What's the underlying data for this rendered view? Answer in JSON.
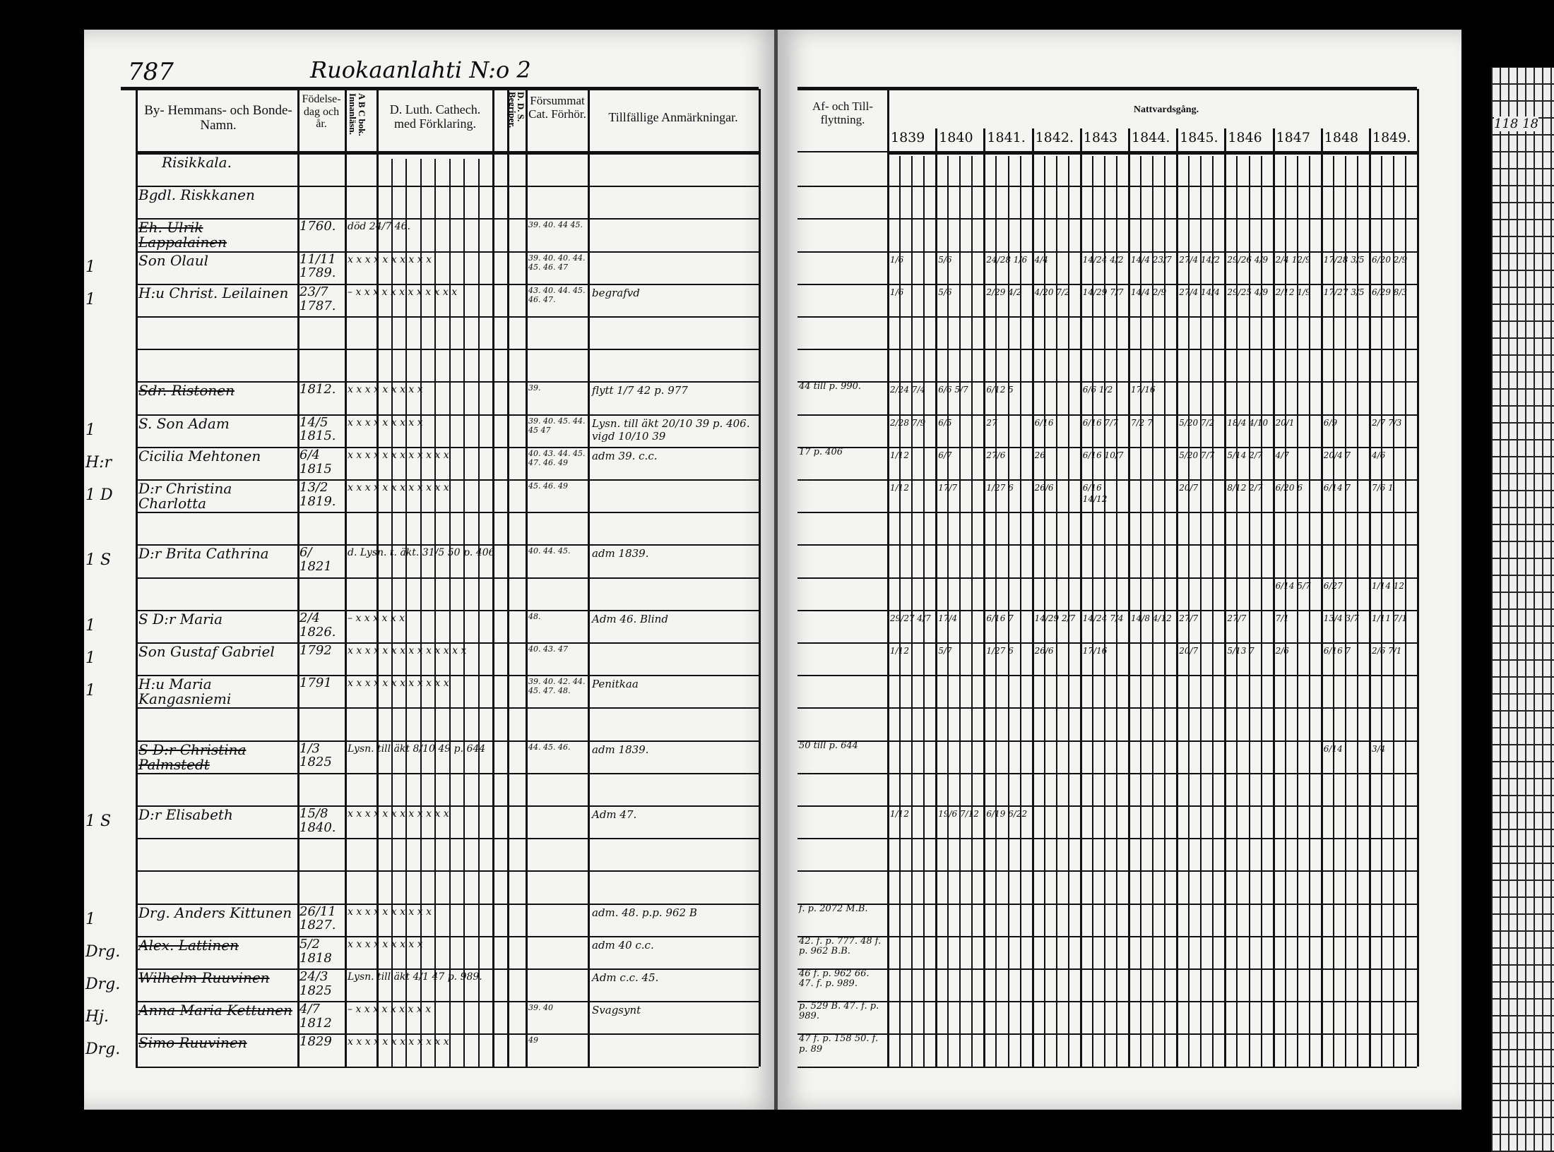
{
  "left_page": {
    "page_number": "787",
    "header_title": "Ruokaanlahti N:o 2",
    "columns": [
      "By- Hemmans- och Bonde-Namn.",
      "Födelse-dag och år.",
      "A B C bok. Innanläsn.",
      "D. Luth. Cathech. med Förklaring.",
      "D. D. S. Begriper.",
      "Försummat Cat. Förhör.",
      "Tillfällige Anmärkningar."
    ],
    "entries": [
      {
        "margin": "",
        "name": "Risikkala.",
        "birth": "",
        "luth": "",
        "missed": "",
        "remark": ""
      },
      {
        "margin": "",
        "name": "Bgdl. Riskkanen",
        "birth": "",
        "luth": "",
        "missed": "",
        "remark": ""
      },
      {
        "margin": "",
        "name": "Eh. Ulrik Lappalainen",
        "birth": "1760.",
        "luth": "död 24/7 46.",
        "missed": "39. 40. 44 45.",
        "remark": ""
      },
      {
        "margin": "1",
        "name": "Son Olaul",
        "birth": "11/11 1789.",
        "luth": "x x x x x x x x x x",
        "missed": "39. 40. 40. 44. 45. 46. 47",
        "remark": ""
      },
      {
        "margin": "1",
        "name": "H:u Christ. Leilainen",
        "birth": "23/7 1787.",
        "luth": "– x x x x x x x x x x x x",
        "missed": "43. 40. 44. 45. 46. 47.",
        "remark": "begrafvd"
      },
      {
        "margin": "",
        "name": "Sdr. Ristonen",
        "birth": "1812.",
        "luth": "x x x x x x x x x",
        "missed": "39.",
        "remark": "flytt 1/7 42 p. 977"
      },
      {
        "margin": "1",
        "name": "S. Son Adam",
        "birth": "14/5 1815.",
        "luth": "x x x x x x x x x",
        "missed": "39. 40. 45. 44. 45 47",
        "remark": "Lysn. till äkt 20/10 39 p. 406. vigd 10/10 39"
      },
      {
        "margin": "H:r",
        "name": "Cicilia Mehtonen",
        "birth": "6/4 1815",
        "luth": "x x x x x x x x x x x x",
        "missed": "40. 43. 44. 45. 47. 46. 49",
        "remark": "adm 39. c.c."
      },
      {
        "margin": "1 D",
        "name": "D:r Christina Charlotta",
        "birth": "13/2 1819.",
        "luth": "x x x x x x x x x x x x",
        "missed": "45. 46. 49",
        "remark": ""
      },
      {
        "margin": "1 S",
        "name": "D:r Brita Cathrina",
        "birth": "6/ 1821",
        "luth": "d. Lysn. t. äkt. 31/5 50 p. 406",
        "missed": "40. 44. 45.",
        "remark": "adm 1839."
      },
      {
        "margin": "1",
        "name": "S D:r Maria",
        "birth": "2/4 1826.",
        "luth": "– x x x x x x",
        "missed": "48.",
        "remark": "Adm 46. Blind"
      },
      {
        "margin": "1",
        "name": "Son Gustaf Gabriel",
        "birth": "1792",
        "luth": "x x x x x x x x x x x x x x",
        "missed": "40. 43. 47",
        "remark": ""
      },
      {
        "margin": "1",
        "name": "H:u Maria Kangasniemi",
        "birth": "1791",
        "luth": "x x x x x x x x x x x x",
        "missed": "39. 40. 42. 44. 45. 47. 48.",
        "remark": "Penitkaa"
      },
      {
        "margin": "",
        "name": "S D:r Christina Palmstedt",
        "birth": "1/3 1825",
        "luth": "Lysn. till äkt 8/10 49 p. 644",
        "missed": "44. 45. 46.",
        "remark": "adm 1839."
      },
      {
        "margin": "1 S",
        "name": "D:r Elisabeth",
        "birth": "15/8 1840.",
        "luth": "x x x x x x x x x x x x",
        "missed": "",
        "remark": "Adm 47."
      },
      {
        "margin": "1",
        "name": "Drg. Anders Kittunen",
        "birth": "26/11 1827.",
        "luth": "x x x x x x x x x x",
        "missed": "",
        "remark": "adm. 48. p.p. 962 B"
      },
      {
        "margin": "Drg.",
        "name": "Alex. Lattinen",
        "birth": "5/2 1818",
        "luth": "x x x x x x x x x",
        "missed": "",
        "remark": "adm 40 c.c."
      },
      {
        "margin": "Drg.",
        "name": "Wilhelm Ruuvinen",
        "birth": "24/3 1825",
        "luth": "Lysn. till äkt 4/1 47 p. 989.",
        "missed": "",
        "remark": "Adm c.c. 45."
      },
      {
        "margin": "Hj.",
        "name": "Anna Maria Kettunen",
        "birth": "4/7 1812",
        "luth": "– x x x x x x x x x",
        "missed": "39. 40",
        "remark": "Svagsynt"
      },
      {
        "margin": "Drg.",
        "name": "Simo Ruuvinen",
        "birth": "1829",
        "luth": "x x x x x x x x x x x x",
        "missed": "49",
        "remark": ""
      }
    ]
  },
  "right_page": {
    "columns": [
      "Af- och Till-flyttning.",
      "Nattvardsgång."
    ],
    "years": [
      "1839",
      "1840",
      "1841.",
      "1842.",
      "1843",
      "1844.",
      "1845.",
      "1846",
      "1847",
      "1848",
      "1849."
    ],
    "moves": [
      {
        "text": "44 till p. 990."
      },
      {
        "text": "17 p. 406"
      },
      {
        "text": "50 till p. 644"
      },
      {
        "text": "f. p. 2072 M.B."
      },
      {
        "text": "42. f. p. 777. 48 f. p. 962 B.B."
      },
      {
        "text": "46 f. p. 962 66. 47. f. p. 989."
      },
      {
        "text": "p. 529 B. 47. f. p. 989."
      },
      {
        "text": "47 f. p. 158  50. f. p. 89"
      }
    ],
    "communion": [
      [
        "1/6",
        "5/6",
        "24/28 1/6",
        "4/4",
        "14/24 4/2",
        "14/4 23/7",
        "27/4 14/2",
        "29/26 4/9",
        "2/4 12/9",
        "17/28 3/5",
        "6/20 2/9"
      ],
      [
        "1/6",
        "5/6",
        "2/29 4/2",
        "4/20 7/2",
        "14/29 7/7",
        "14/4 2/9",
        "27/4 14/4",
        "29/25 4/9",
        "2/12 1/9",
        "17/27 3/5",
        "6/29 8/3"
      ],
      [
        "2/24 7/4",
        "6/6 5/7",
        "6/12 5",
        "",
        "6/6 1/2",
        "17/16",
        "",
        "",
        "",
        "",
        ""
      ],
      [
        "2/28 7/9",
        "6/5",
        "27",
        "6/16",
        "6/16 7/7",
        "7/2 7",
        "5/20 7/2",
        "18/4 4/10",
        "20/1",
        "6/9",
        "2/7 7/3"
      ],
      [
        "1/12",
        "6/7",
        "27/6",
        "26",
        "6/16 10/7",
        "",
        "5/20 7/7",
        "5/14 2/7",
        "4/7",
        "20/4 7",
        "4/6"
      ],
      [
        "1/12",
        "17/7",
        "1/27 6",
        "26/6",
        "6/16 14/12",
        "",
        "20/7",
        "8/12 2/7",
        "6/20 6",
        "6/14 7",
        "7/6 1"
      ],
      [
        "",
        "",
        "",
        "",
        "",
        "",
        "",
        "",
        "6/14 5/7",
        "6/27",
        "1/14 12"
      ],
      [
        "29/27 4/7",
        "17/4",
        "6/16 7",
        "14/29 2/7",
        "14/24 7/4",
        "14/8 4/12",
        "27/7",
        "27/7",
        "7/1",
        "13/4 3/7",
        "1/11 7/1"
      ],
      [
        "1/12",
        "5/7",
        "1/27 6",
        "26/6",
        "17/16",
        "",
        "20/7",
        "5/13 7",
        "2/6",
        "6/16 7",
        "2/6 7/1"
      ],
      [
        "",
        "",
        "",
        "",
        "",
        "",
        "",
        "",
        "",
        "6/14",
        "3/4"
      ],
      [
        "1/12",
        "19/6 7/12",
        "6/19 6/22",
        "",
        "",
        "",
        "",
        "",
        "",
        "",
        ""
      ]
    ]
  },
  "next_page_strip": {
    "label": "118 18"
  }
}
